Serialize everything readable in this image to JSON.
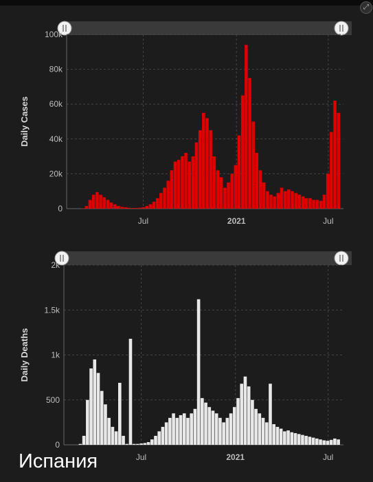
{
  "country_label": "Испания",
  "colors": {
    "background": "#1c1c1c",
    "cases_bar": "#e00000",
    "deaths_bar": "#e8e8e8",
    "axis_text": "#bdbdbd",
    "grid": "#444444"
  },
  "chart_data": [
    {
      "type": "bar",
      "title": "",
      "ylabel": "Daily Cases",
      "ylim": [
        0,
        100000
      ],
      "yticks": [
        0,
        20000,
        40000,
        60000,
        80000,
        100000
      ],
      "yticklabels": [
        "0",
        "20k",
        "40k",
        "60k",
        "80k",
        "100k"
      ],
      "xlim": [
        "2020-02-01",
        "2021-07-31"
      ],
      "xticks": [
        "2020-07-01",
        "2021-01-01",
        "2021-07-01"
      ],
      "xticklabels": [
        "Jul",
        "2021",
        "Jul"
      ],
      "grid": true,
      "range_slider": true,
      "series": [
        {
          "color": "#e00000",
          "x": [
            "2020-02-23",
            "2020-03-01",
            "2020-03-08",
            "2020-03-15",
            "2020-03-22",
            "2020-03-29",
            "2020-04-05",
            "2020-04-12",
            "2020-04-19",
            "2020-04-26",
            "2020-05-03",
            "2020-05-10",
            "2020-05-17",
            "2020-05-24",
            "2020-05-31",
            "2020-06-07",
            "2020-06-14",
            "2020-06-21",
            "2020-06-28",
            "2020-07-05",
            "2020-07-12",
            "2020-07-19",
            "2020-07-26",
            "2020-08-02",
            "2020-08-09",
            "2020-08-16",
            "2020-08-23",
            "2020-08-30",
            "2020-09-06",
            "2020-09-13",
            "2020-09-20",
            "2020-09-27",
            "2020-10-04",
            "2020-10-11",
            "2020-10-18",
            "2020-10-25",
            "2020-11-01",
            "2020-11-08",
            "2020-11-15",
            "2020-11-22",
            "2020-11-29",
            "2020-12-06",
            "2020-12-13",
            "2020-12-20",
            "2020-12-27",
            "2021-01-03",
            "2021-01-10",
            "2021-01-17",
            "2021-01-24",
            "2021-01-31",
            "2021-02-07",
            "2021-02-14",
            "2021-02-21",
            "2021-02-28",
            "2021-03-07",
            "2021-03-14",
            "2021-03-21",
            "2021-03-28",
            "2021-04-04",
            "2021-04-11",
            "2021-04-18",
            "2021-04-25",
            "2021-05-02",
            "2021-05-09",
            "2021-05-16",
            "2021-05-23",
            "2021-05-30",
            "2021-06-06",
            "2021-06-13",
            "2021-06-20",
            "2021-06-27",
            "2021-07-04",
            "2021-07-11",
            "2021-07-18"
          ],
          "values": [
            0,
            200,
            1500,
            5000,
            8000,
            9500,
            8000,
            6500,
            5000,
            3500,
            2500,
            1500,
            1000,
            800,
            500,
            400,
            400,
            500,
            800,
            1500,
            2500,
            4000,
            6000,
            9000,
            12000,
            16000,
            22000,
            27000,
            28000,
            30000,
            32000,
            27000,
            30000,
            38000,
            45000,
            55000,
            52000,
            45000,
            30000,
            22000,
            18000,
            12000,
            15000,
            20000,
            25000,
            42000,
            65000,
            94000,
            75000,
            50000,
            32000,
            22000,
            15000,
            10000,
            8000,
            7000,
            9000,
            12000,
            10000,
            11000,
            10000,
            9000,
            8000,
            7000,
            6000,
            6000,
            5000,
            5000,
            4500,
            8000,
            20000,
            44000,
            62000,
            55000
          ]
        }
      ]
    },
    {
      "type": "bar",
      "title": "",
      "ylabel": "Daily Deaths",
      "ylim": [
        0,
        2000
      ],
      "yticks": [
        0,
        500,
        1000,
        1500,
        2000
      ],
      "yticklabels": [
        "0",
        "500",
        "1k",
        "1.5k",
        "2k"
      ],
      "xlim": [
        "2020-02-01",
        "2021-07-31"
      ],
      "xticks": [
        "2020-07-01",
        "2021-01-01",
        "2021-07-01"
      ],
      "xticklabels": [
        "Jul",
        "2021",
        "Jul"
      ],
      "grid": true,
      "range_slider": true,
      "series": [
        {
          "color": "#e8e8e8",
          "x": [
            "2020-02-23",
            "2020-03-01",
            "2020-03-08",
            "2020-03-15",
            "2020-03-22",
            "2020-03-29",
            "2020-04-05",
            "2020-04-12",
            "2020-04-19",
            "2020-04-26",
            "2020-05-03",
            "2020-05-10",
            "2020-05-17",
            "2020-05-24",
            "2020-05-31",
            "2020-06-07",
            "2020-06-14",
            "2020-06-21",
            "2020-06-28",
            "2020-07-05",
            "2020-07-12",
            "2020-07-19",
            "2020-07-26",
            "2020-08-02",
            "2020-08-09",
            "2020-08-16",
            "2020-08-23",
            "2020-08-30",
            "2020-09-06",
            "2020-09-13",
            "2020-09-20",
            "2020-09-27",
            "2020-10-04",
            "2020-10-11",
            "2020-10-18",
            "2020-10-25",
            "2020-11-01",
            "2020-11-08",
            "2020-11-15",
            "2020-11-22",
            "2020-11-29",
            "2020-12-06",
            "2020-12-13",
            "2020-12-20",
            "2020-12-27",
            "2021-01-03",
            "2021-01-10",
            "2021-01-17",
            "2021-01-24",
            "2021-01-31",
            "2021-02-07",
            "2021-02-14",
            "2021-02-21",
            "2021-02-28",
            "2021-03-07",
            "2021-03-14",
            "2021-03-21",
            "2021-03-28",
            "2021-04-04",
            "2021-04-11",
            "2021-04-18",
            "2021-04-25",
            "2021-05-02",
            "2021-05-09",
            "2021-05-16",
            "2021-05-23",
            "2021-05-30",
            "2021-06-06",
            "2021-06-13",
            "2021-06-20",
            "2021-06-27",
            "2021-07-04",
            "2021-07-11",
            "2021-07-18"
          ],
          "values": [
            0,
            10,
            100,
            500,
            850,
            950,
            800,
            600,
            450,
            300,
            200,
            150,
            690,
            100,
            10,
            1180,
            10,
            10,
            15,
            20,
            30,
            60,
            100,
            150,
            200,
            250,
            300,
            350,
            300,
            330,
            350,
            300,
            350,
            400,
            1620,
            520,
            470,
            420,
            380,
            350,
            300,
            250,
            300,
            350,
            420,
            520,
            680,
            760,
            650,
            500,
            400,
            350,
            300,
            250,
            680,
            230,
            200,
            180,
            150,
            160,
            140,
            130,
            120,
            110,
            100,
            90,
            80,
            70,
            60,
            50,
            45,
            55,
            70,
            60
          ]
        }
      ]
    }
  ]
}
